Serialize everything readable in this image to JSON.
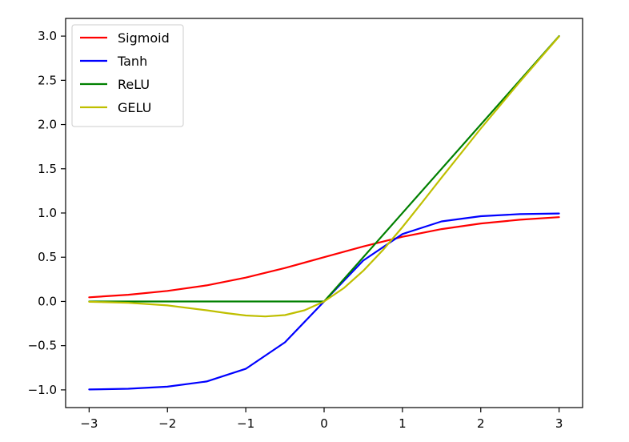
{
  "chart_data": {
    "type": "line",
    "x_range": [
      -3,
      3
    ],
    "xlim": [
      -3.3,
      3.3
    ],
    "ylim": [
      -1.2,
      3.2
    ],
    "xticks": [
      -3,
      -2,
      -1,
      0,
      1,
      2,
      3
    ],
    "xtick_labels": [
      "−3",
      "−2",
      "−1",
      "0",
      "1",
      "2",
      "3"
    ],
    "yticks": [
      -1.0,
      -0.5,
      0.0,
      0.5,
      1.0,
      1.5,
      2.0,
      2.5,
      3.0
    ],
    "ytick_labels": [
      "−1.0",
      "−0.5",
      "0.0",
      "0.5",
      "1.0",
      "1.5",
      "2.0",
      "2.5",
      "3.0"
    ],
    "grid": false,
    "legend_position": "top-left",
    "title": "",
    "xlabel": "",
    "ylabel": "",
    "series": [
      {
        "name": "Sigmoid",
        "color": "#ff0000",
        "x": [
          -3,
          -2.5,
          -2,
          -1.5,
          -1,
          -0.5,
          0,
          0.5,
          1,
          1.5,
          2,
          2.5,
          3
        ],
        "y": [
          0.047,
          0.076,
          0.119,
          0.182,
          0.269,
          0.378,
          0.5,
          0.622,
          0.731,
          0.818,
          0.881,
          0.924,
          0.953
        ]
      },
      {
        "name": "Tanh",
        "color": "#0000ff",
        "x": [
          -3,
          -2.5,
          -2,
          -1.5,
          -1,
          -0.5,
          0,
          0.5,
          1,
          1.5,
          2,
          2.5,
          3
        ],
        "y": [
          -0.995,
          -0.987,
          -0.964,
          -0.905,
          -0.762,
          -0.462,
          0.0,
          0.462,
          0.762,
          0.905,
          0.964,
          0.987,
          0.995
        ]
      },
      {
        "name": "ReLU",
        "color": "#008000",
        "x": [
          -3,
          0,
          3
        ],
        "y": [
          0,
          0,
          3
        ]
      },
      {
        "name": "GELU",
        "color": "#bfbf00",
        "x": [
          -3,
          -2.5,
          -2,
          -1.5,
          -1.25,
          -1,
          -0.75,
          -0.5,
          -0.25,
          0,
          0.25,
          0.5,
          0.75,
          1,
          1.25,
          1.5,
          2,
          2.5,
          3
        ],
        "y": [
          -0.004,
          -0.015,
          -0.045,
          -0.1,
          -0.132,
          -0.159,
          -0.17,
          -0.154,
          -0.1,
          0.0,
          0.15,
          0.346,
          0.58,
          0.841,
          1.118,
          1.4,
          1.955,
          2.485,
          2.996
        ]
      }
    ]
  }
}
